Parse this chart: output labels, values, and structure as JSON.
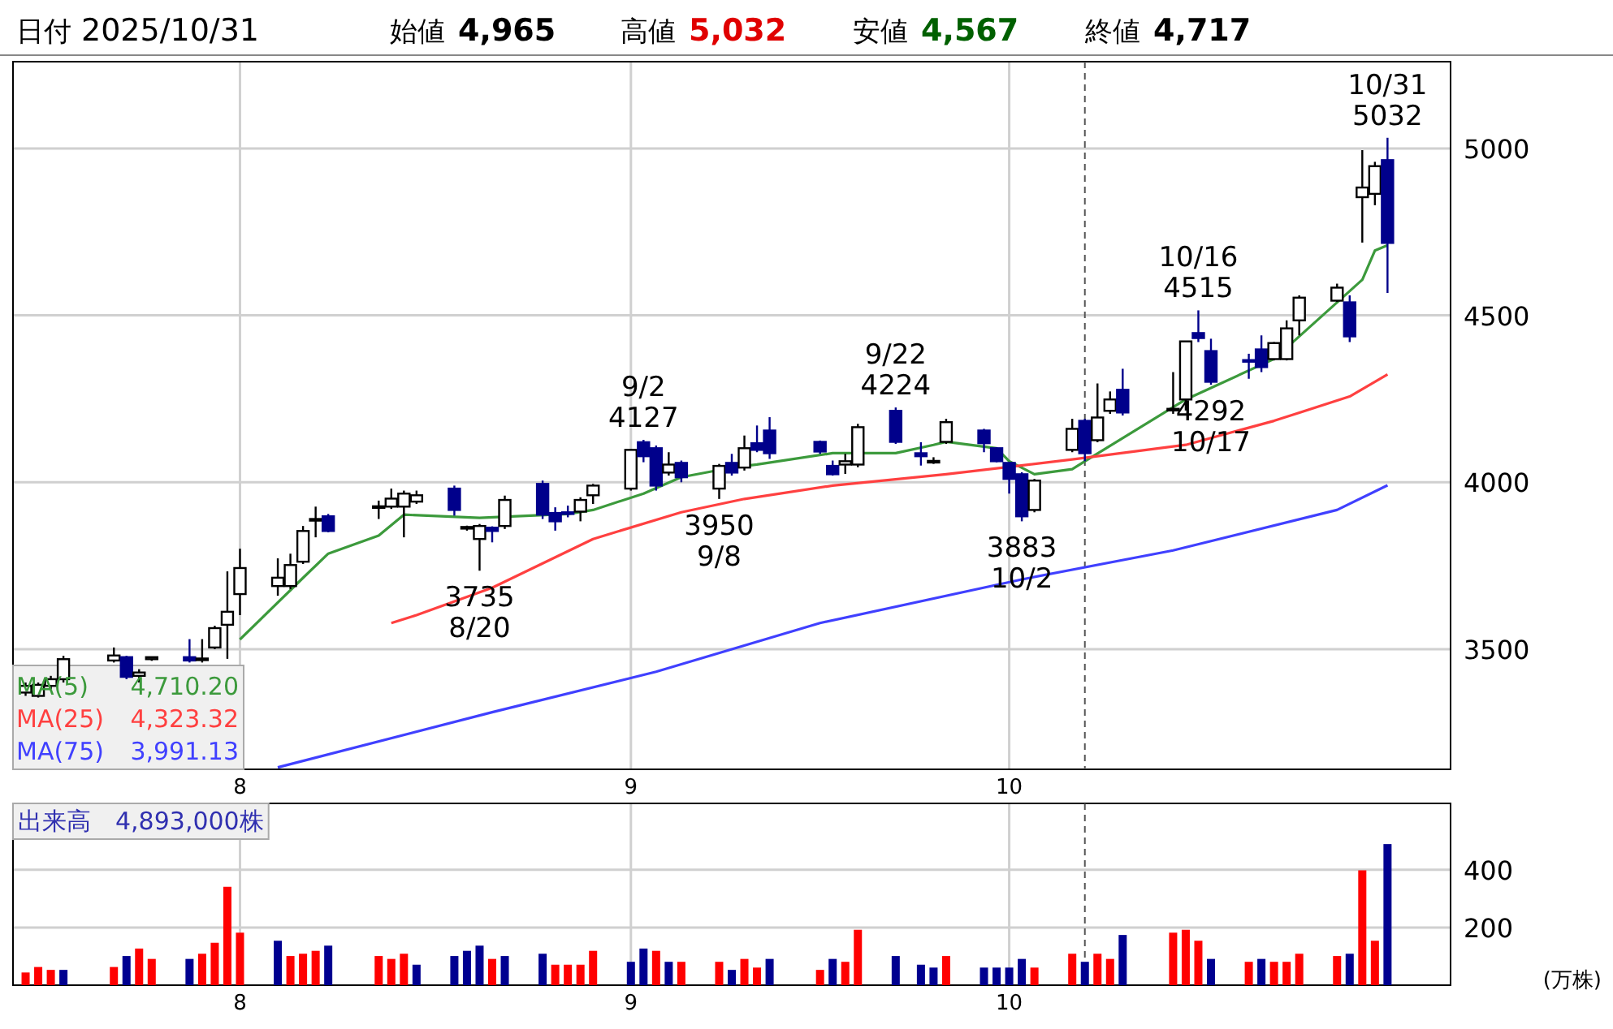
{
  "chart_data": [
    {
      "type": "candlestick",
      "x": [
        "2025-07-15",
        "2025-07-16",
        "2025-07-17",
        "2025-07-18",
        "2025-07-22",
        "2025-07-23",
        "2025-07-24",
        "2025-07-25",
        "2025-07-28",
        "2025-07-29",
        "2025-07-30",
        "2025-07-31",
        "2025-08-01",
        "2025-08-04",
        "2025-08-05",
        "2025-08-06",
        "2025-08-07",
        "2025-08-08",
        "2025-08-12",
        "2025-08-13",
        "2025-08-14",
        "2025-08-15",
        "2025-08-18",
        "2025-08-19",
        "2025-08-20",
        "2025-08-21",
        "2025-08-22",
        "2025-08-25",
        "2025-08-26",
        "2025-08-27",
        "2025-08-28",
        "2025-08-29",
        "2025-09-01",
        "2025-09-02",
        "2025-09-03",
        "2025-09-04",
        "2025-09-05",
        "2025-09-08",
        "2025-09-09",
        "2025-09-10",
        "2025-09-11",
        "2025-09-12",
        "2025-09-16",
        "2025-09-17",
        "2025-09-18",
        "2025-09-19",
        "2025-09-22",
        "2025-09-24",
        "2025-09-25",
        "2025-09-26",
        "2025-09-29",
        "2025-09-30",
        "2025-10-01",
        "2025-10-02",
        "2025-10-03",
        "2025-10-06",
        "2025-10-07",
        "2025-10-08",
        "2025-10-09",
        "2025-10-10",
        "2025-10-14",
        "2025-10-15",
        "2025-10-16",
        "2025-10-17",
        "2025-10-20",
        "2025-10-21",
        "2025-10-22",
        "2025-10-23",
        "2025-10-24",
        "2025-10-27",
        "2025-10-28",
        "2025-10-29",
        "2025-10-30",
        "2025-10-31"
      ],
      "xlim": [
        "2025-07-14",
        "2025-11-05"
      ],
      "xticks": [
        {
          "value": "2025-08-01",
          "label": "8"
        },
        {
          "value": "2025-09-01",
          "label": "9"
        },
        {
          "value": "2025-10-01",
          "label": "10"
        }
      ],
      "ref_lines": [
        {
          "axis": "x",
          "value": "2025-10-07",
          "color": "#555555",
          "line_style": "dashed"
        }
      ],
      "ohlc": [
        [
          3370,
          3400,
          3360,
          3390
        ],
        [
          3360,
          3400,
          3355,
          3393
        ],
        [
          3390,
          3420,
          3380,
          3410
        ],
        [
          3410,
          3480,
          3400,
          3470
        ],
        [
          3466,
          3505,
          3460,
          3481
        ],
        [
          3476,
          3480,
          3410,
          3417
        ],
        [
          3420,
          3440,
          3400,
          3430
        ],
        [
          3470,
          3478,
          3465,
          3476
        ],
        [
          3476,
          3530,
          3460,
          3466
        ],
        [
          3470,
          3530,
          3460,
          3472
        ],
        [
          3505,
          3570,
          3500,
          3563
        ],
        [
          3573,
          3733,
          3471,
          3612
        ],
        [
          3665,
          3801,
          3602,
          3743
        ],
        [
          3689,
          3772,
          3660,
          3714
        ],
        [
          3689,
          3786,
          3680,
          3752
        ],
        [
          3762,
          3869,
          3755,
          3854
        ],
        [
          3885,
          3927,
          3835,
          3890
        ],
        [
          3898,
          3905,
          3850,
          3854
        ],
        [
          3925,
          3945,
          3890,
          3928
        ],
        [
          3927,
          3981,
          3920,
          3951
        ],
        [
          3927,
          3975,
          3835,
          3966
        ],
        [
          3942,
          3975,
          3935,
          3961
        ],
        [
          3981,
          3990,
          3900,
          3917
        ],
        [
          3862,
          3870,
          3855,
          3866
        ],
        [
          3830,
          3875,
          3735,
          3869
        ],
        [
          3864,
          3868,
          3820,
          3854
        ],
        [
          3869,
          3960,
          3860,
          3947
        ],
        [
          3995,
          4005,
          3890,
          3903
        ],
        [
          3908,
          3925,
          3855,
          3883
        ],
        [
          3910,
          3930,
          3895,
          3905
        ],
        [
          3912,
          3955,
          3883,
          3947
        ],
        [
          3961,
          3995,
          3935,
          3990
        ],
        [
          3981,
          4100,
          3975,
          4097
        ],
        [
          4120,
          4127,
          4060,
          4078
        ],
        [
          4102,
          4110,
          3975,
          3990
        ],
        [
          4029,
          4090,
          4020,
          4053
        ],
        [
          4058,
          4065,
          4000,
          4015
        ],
        [
          3981,
          4055,
          3950,
          4049
        ],
        [
          4058,
          4085,
          4020,
          4029
        ],
        [
          4044,
          4140,
          4035,
          4102
        ],
        [
          4117,
          4170,
          4090,
          4097
        ],
        [
          4155,
          4195,
          4070,
          4087
        ],
        [
          4121,
          4125,
          4085,
          4092
        ],
        [
          4049,
          4065,
          4020,
          4024
        ],
        [
          4053,
          4085,
          4025,
          4063
        ],
        [
          4053,
          4175,
          4045,
          4165
        ],
        [
          4214,
          4224,
          4115,
          4121
        ],
        [
          4087,
          4120,
          4050,
          4078
        ],
        [
          4062,
          4075,
          4055,
          4064
        ],
        [
          4121,
          4190,
          4115,
          4180
        ],
        [
          4155,
          4160,
          4090,
          4117
        ],
        [
          4102,
          4105,
          4060,
          4063
        ],
        [
          4058,
          4060,
          3966,
          4010
        ],
        [
          4024,
          4030,
          3883,
          3898
        ],
        [
          3917,
          4010,
          3910,
          4005
        ],
        [
          4097,
          4190,
          4090,
          4160
        ],
        [
          4184,
          4190,
          4063,
          4087
        ],
        [
          4126,
          4296,
          4120,
          4194
        ],
        [
          4214,
          4272,
          4205,
          4248
        ],
        [
          4277,
          4340,
          4200,
          4209
        ],
        [
          4216,
          4330,
          4205,
          4220
        ],
        [
          4248,
          4422,
          4215,
          4422
        ],
        [
          4447,
          4515,
          4420,
          4432
        ],
        [
          4393,
          4430,
          4292,
          4301
        ],
        [
          4366,
          4385,
          4310,
          4362
        ],
        [
          4398,
          4440,
          4330,
          4345
        ],
        [
          4369,
          4420,
          4365,
          4417
        ],
        [
          4369,
          4485,
          4365,
          4461
        ],
        [
          4485,
          4560,
          4440,
          4553
        ],
        [
          4544,
          4595,
          4540,
          4583
        ],
        [
          4539,
          4560,
          4420,
          4437
        ],
        [
          4854,
          4995,
          4718,
          4883
        ],
        [
          4864,
          4960,
          4830,
          4947
        ],
        [
          4965,
          5032,
          4567,
          4717
        ]
      ],
      "series": [
        {
          "name": "MA(5)",
          "type": "line",
          "color": "#3c9a3c",
          "values": [
            null,
            null,
            null,
            null,
            null,
            null,
            null,
            null,
            null,
            null,
            null,
            null,
            3529,
            null,
            null,
            3714,
            null,
            3786,
            3840,
            null,
            3903,
            null,
            null,
            null,
            3893,
            null,
            null,
            null,
            null,
            3905,
            null,
            3917,
            null,
            3966,
            null,
            null,
            4015,
            null,
            4044,
            null,
            4053,
            null,
            null,
            4087,
            null,
            null,
            4087,
            null,
            4112,
            4121,
            null,
            4102,
            4063,
            null,
            4024,
            4039,
            4063,
            null,
            null,
            null,
            null,
            4248,
            null,
            null,
            null,
            null,
            4369,
            null,
            4437,
            null,
            null,
            4607,
            4694,
            4710
          ]
        },
        {
          "name": "MA(25)",
          "type": "line",
          "color": "#ff4040",
          "values": [
            null,
            null,
            null,
            null,
            null,
            null,
            null,
            null,
            null,
            null,
            null,
            null,
            null,
            null,
            null,
            null,
            null,
            null,
            null,
            3578,
            null,
            3602,
            null,
            null,
            null,
            3684,
            null,
            null,
            null,
            null,
            null,
            3830,
            null,
            null,
            null,
            null,
            3910,
            null,
            null,
            3950,
            null,
            null,
            null,
            3990,
            null,
            null,
            null,
            null,
            null,
            4024,
            null,
            null,
            null,
            null,
            null,
            4068,
            null,
            null,
            null,
            null,
            null,
            4112,
            null,
            null,
            null,
            null,
            4184,
            null,
            null,
            null,
            4257,
            null,
            null,
            4323
          ]
        },
        {
          "name": "MA(75)",
          "type": "line",
          "color": "#4040ff",
          "values": [
            null,
            null,
            null,
            null,
            null,
            null,
            null,
            null,
            null,
            null,
            null,
            null,
            null,
            3146,
            null,
            null,
            null,
            null,
            null,
            null,
            null,
            null,
            null,
            null,
            null,
            3311,
            null,
            null,
            null,
            null,
            null,
            null,
            null,
            null,
            3432,
            null,
            null,
            null,
            null,
            null,
            null,
            null,
            3578,
            null,
            null,
            null,
            null,
            null,
            null,
            null,
            null,
            null,
            null,
            3709,
            null,
            null,
            null,
            null,
            null,
            null,
            3796,
            null,
            null,
            null,
            null,
            null,
            null,
            null,
            null,
            3917,
            null,
            null,
            null,
            3991
          ]
        }
      ],
      "ylim": [
        3140,
        5260
      ],
      "yticks": [
        3500,
        4000,
        4500,
        5000
      ],
      "grid": true,
      "legend": "bottom left",
      "annotations": [
        "日付",
        "2025/10/31",
        "始値",
        "4,965",
        "高値",
        "5,032",
        "安値",
        "4,567",
        "終値",
        "4,717",
        "4,710.20",
        "4,323.32",
        "3,991.13",
        {
          "text": "10/31 5032",
          "x": "2025-10-31",
          "y": 5032
        },
        {
          "text": "10/16 4515",
          "x": "2025-10-16",
          "y": 4515
        },
        {
          "text": "9/22 4224",
          "x": "2025-09-22",
          "y": 4224
        },
        {
          "text": "9/2 4127",
          "x": "2025-09-02",
          "y": 4127
        },
        {
          "text": "3735 8/20",
          "x": "2025-08-20",
          "y": 3735
        },
        {
          "text": "3950 9/8",
          "x": "2025-09-08",
          "y": 3950
        },
        {
          "text": "3883 10/2",
          "x": "2025-10-02",
          "y": 3883
        },
        {
          "text": "4292 10/17",
          "x": "2025-10-17",
          "y": 4292
        }
      ]
    },
    {
      "type": "bar",
      "x": [
        "2025-07-15",
        "2025-07-16",
        "2025-07-17",
        "2025-07-18",
        "2025-07-22",
        "2025-07-23",
        "2025-07-24",
        "2025-07-25",
        "2025-07-28",
        "2025-07-29",
        "2025-07-30",
        "2025-07-31",
        "2025-08-01",
        "2025-08-04",
        "2025-08-05",
        "2025-08-06",
        "2025-08-07",
        "2025-08-08",
        "2025-08-12",
        "2025-08-13",
        "2025-08-14",
        "2025-08-15",
        "2025-08-18",
        "2025-08-19",
        "2025-08-20",
        "2025-08-21",
        "2025-08-22",
        "2025-08-25",
        "2025-08-26",
        "2025-08-27",
        "2025-08-28",
        "2025-08-29",
        "2025-09-01",
        "2025-09-02",
        "2025-09-03",
        "2025-09-04",
        "2025-09-05",
        "2025-09-08",
        "2025-09-09",
        "2025-09-10",
        "2025-09-11",
        "2025-09-12",
        "2025-09-16",
        "2025-09-17",
        "2025-09-18",
        "2025-09-19",
        "2025-09-22",
        "2025-09-24",
        "2025-09-25",
        "2025-09-26",
        "2025-09-29",
        "2025-09-30",
        "2025-10-01",
        "2025-10-02",
        "2025-10-03",
        "2025-10-06",
        "2025-10-07",
        "2025-10-08",
        "2025-10-09",
        "2025-10-10",
        "2025-10-14",
        "2025-10-15",
        "2025-10-16",
        "2025-10-17",
        "2025-10-20",
        "2025-10-21",
        "2025-10-22",
        "2025-10-23",
        "2025-10-24",
        "2025-10-27",
        "2025-10-28",
        "2025-10-29",
        "2025-10-30",
        "2025-10-31"
      ],
      "xlim": [
        "2025-07-14",
        "2025-11-05"
      ],
      "xticks": [
        {
          "value": "2025-08-01",
          "label": "8"
        },
        {
          "value": "2025-09-01",
          "label": "9"
        },
        {
          "value": "2025-10-01",
          "label": "10"
        }
      ],
      "ref_lines": [
        {
          "axis": "x",
          "value": "2025-10-07",
          "color": "#555555",
          "line_style": "dashed"
        }
      ],
      "values": [
        44,
        63,
        53,
        53,
        63,
        101,
        127,
        91,
        91,
        109,
        147,
        341,
        182,
        154,
        101,
        109,
        119,
        137,
        101,
        91,
        109,
        71,
        101,
        119,
        137,
        91,
        101,
        109,
        71,
        71,
        71,
        119,
        81,
        127,
        119,
        81,
        81,
        81,
        53,
        91,
        61,
        91,
        53,
        91,
        81,
        192,
        101,
        71,
        61,
        101,
        61,
        61,
        61,
        91,
        61,
        109,
        81,
        109,
        91,
        174,
        182,
        192,
        154,
        91,
        81,
        91,
        81,
        81,
        109,
        101,
        109,
        398,
        154,
        489
      ],
      "colors": [
        "#ff0000",
        "#ff0000",
        "#ff0000",
        "#000090",
        "#ff0000",
        "#000090",
        "#ff0000",
        "#ff0000",
        "#000090",
        "#ff0000",
        "#ff0000",
        "#ff0000",
        "#ff0000",
        "#000090",
        "#ff0000",
        "#ff0000",
        "#ff0000",
        "#000090",
        "#ff0000",
        "#ff0000",
        "#ff0000",
        "#000090",
        "#000090",
        "#000090",
        "#000090",
        "#ff0000",
        "#000090",
        "#000090",
        "#ff0000",
        "#ff0000",
        "#ff0000",
        "#ff0000",
        "#000090",
        "#000090",
        "#ff0000",
        "#000090",
        "#ff0000",
        "#ff0000",
        "#000090",
        "#ff0000",
        "#ff0000",
        "#000090",
        "#ff0000",
        "#000090",
        "#ff0000",
        "#ff0000",
        "#000090",
        "#000090",
        "#000090",
        "#ff0000",
        "#000090",
        "#000090",
        "#000090",
        "#000090",
        "#ff0000",
        "#ff0000",
        "#000090",
        "#ff0000",
        "#ff0000",
        "#000090",
        "#ff0000",
        "#ff0000",
        "#ff0000",
        "#000090",
        "#ff0000",
        "#000090",
        "#ff0000",
        "#ff0000",
        "#ff0000",
        "#ff0000",
        "#000090",
        "#ff0000",
        "#ff0000",
        "#000090"
      ],
      "ylim": [
        0,
        630
      ],
      "yticks": [
        200,
        400
      ],
      "grid": true,
      "ylabel": "(万株)",
      "annotations": [
        "出来高　4,893,000株"
      ]
    }
  ]
}
